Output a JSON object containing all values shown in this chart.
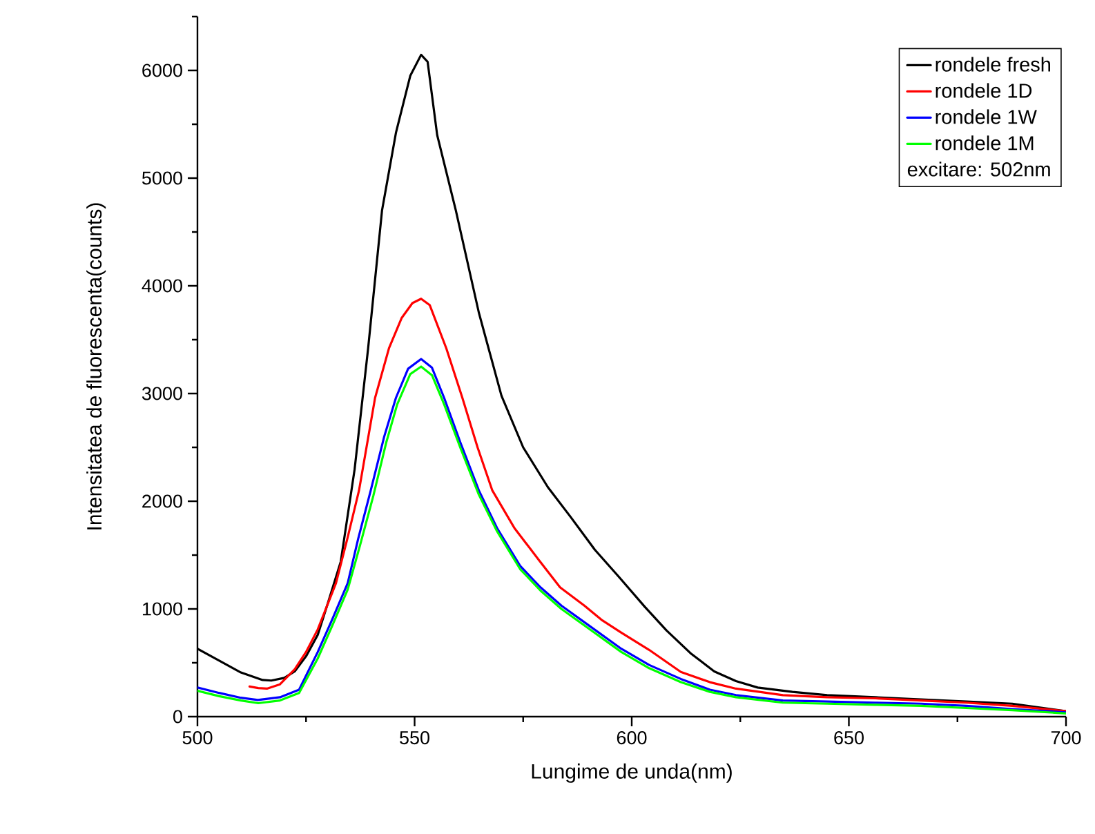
{
  "chart_data": {
    "type": "line",
    "xlabel": "Lungime de unda(nm)",
    "ylabel": "Intensitatea de fluorescenta(counts)",
    "xlim": [
      500,
      700
    ],
    "ylim": [
      0,
      6500
    ],
    "xticks": [
      500,
      {
        "value": 525,
        "label": null
      },
      550,
      {
        "value": 575,
        "label": null
      },
      600,
      {
        "value": 625,
        "label": null
      },
      650,
      {
        "value": 675,
        "label": null
      },
      700
    ],
    "yticks": [
      0,
      {
        "value": 500,
        "label": null
      },
      1000,
      {
        "value": 1500,
        "label": null
      },
      2000,
      {
        "value": 2500,
        "label": null
      },
      3000,
      {
        "value": 3500,
        "label": null
      },
      4000,
      {
        "value": 4500,
        "label": null
      },
      5000,
      {
        "value": 5500,
        "label": null
      },
      6000,
      {
        "value": 6500,
        "label": null
      }
    ],
    "legend": "top right",
    "grid": false,
    "marker": "none",
    "line_style": "solid",
    "annotations": [
      "excitare: 502nm"
    ],
    "series": [
      {
        "name": "rondele fresh",
        "color": "#000000",
        "x": [
          500,
          505,
          510,
          515,
          517,
          520,
          522.4,
          525,
          527.7,
          530,
          533,
          536.2,
          539.3,
          542.5,
          545.7,
          549,
          551.5,
          553,
          555.2,
          559.5,
          564.8,
          570,
          575,
          580.7,
          586,
          591.5,
          597,
          603,
          608,
          613.5,
          619,
          624,
          629,
          637,
          645,
          656,
          666.6,
          677,
          687.6,
          700
        ],
        "values": [
          630,
          520,
          410,
          340,
          335,
          360,
          420,
          560,
          760,
          1050,
          1440,
          2300,
          3420,
          4700,
          5420,
          5950,
          6145,
          6080,
          5400,
          4700,
          3750,
          2980,
          2500,
          2130,
          1850,
          1550,
          1300,
          1020,
          800,
          590,
          420,
          330,
          270,
          230,
          200,
          180,
          160,
          140,
          120,
          50
        ]
      },
      {
        "name": "rondele 1D",
        "color": "#ff0000",
        "x": [
          512,
          514,
          516,
          519,
          522.4,
          525,
          527.7,
          531.9,
          534.5,
          537.2,
          540.9,
          544.1,
          547,
          549.5,
          551.5,
          553.5,
          557.3,
          561,
          564.5,
          567.9,
          573,
          578.5,
          583.5,
          589.1,
          593,
          597.6,
          604,
          611.3,
          618,
          624,
          634.8,
          645,
          656,
          666.6,
          677,
          687.6,
          700
        ],
        "values": [
          280,
          265,
          260,
          300,
          440,
          600,
          810,
          1240,
          1650,
          2100,
          2960,
          3420,
          3700,
          3840,
          3880,
          3820,
          3420,
          2960,
          2500,
          2100,
          1750,
          1460,
          1200,
          1030,
          900,
          780,
          620,
          415,
          320,
          260,
          200,
          180,
          170,
          150,
          130,
          100,
          50
        ]
      },
      {
        "name": "rondele 1W",
        "color": "#0000ff",
        "x": [
          500,
          505,
          510,
          513.9,
          519,
          523.4,
          527.7,
          531,
          534.6,
          537,
          539.9,
          543,
          545.7,
          548.5,
          551.5,
          554,
          556.8,
          560.5,
          564.8,
          569,
          574.3,
          579,
          583.8,
          590,
          597.6,
          604,
          611.3,
          618,
          624,
          634.8,
          645,
          656,
          666.6,
          677,
          687.6,
          700
        ],
        "values": [
          270,
          220,
          175,
          155,
          180,
          250,
          600,
          900,
          1240,
          1650,
          2100,
          2600,
          2960,
          3230,
          3320,
          3240,
          2960,
          2550,
          2100,
          1750,
          1400,
          1200,
          1030,
          850,
          630,
          480,
          350,
          250,
          200,
          150,
          140,
          130,
          120,
          100,
          70,
          40
        ]
      },
      {
        "name": "rondele 1M",
        "color": "#00ff00",
        "x": [
          500,
          505,
          510,
          514,
          519,
          523.4,
          527.7,
          531,
          534.6,
          537.5,
          540.5,
          543.5,
          546,
          549,
          551.5,
          554,
          556.8,
          560.5,
          564.8,
          569,
          574.3,
          579,
          583.8,
          590,
          597.6,
          604,
          611.3,
          618,
          624,
          634.8,
          645,
          656,
          666.6,
          677,
          687.6,
          700
        ],
        "values": [
          240,
          190,
          150,
          125,
          150,
          220,
          540,
          840,
          1180,
          1600,
          2050,
          2550,
          2900,
          3180,
          3250,
          3170,
          2900,
          2500,
          2060,
          1720,
          1370,
          1170,
          1000,
          820,
          600,
          450,
          320,
          230,
          180,
          130,
          120,
          110,
          100,
          80,
          60,
          30
        ]
      }
    ]
  }
}
